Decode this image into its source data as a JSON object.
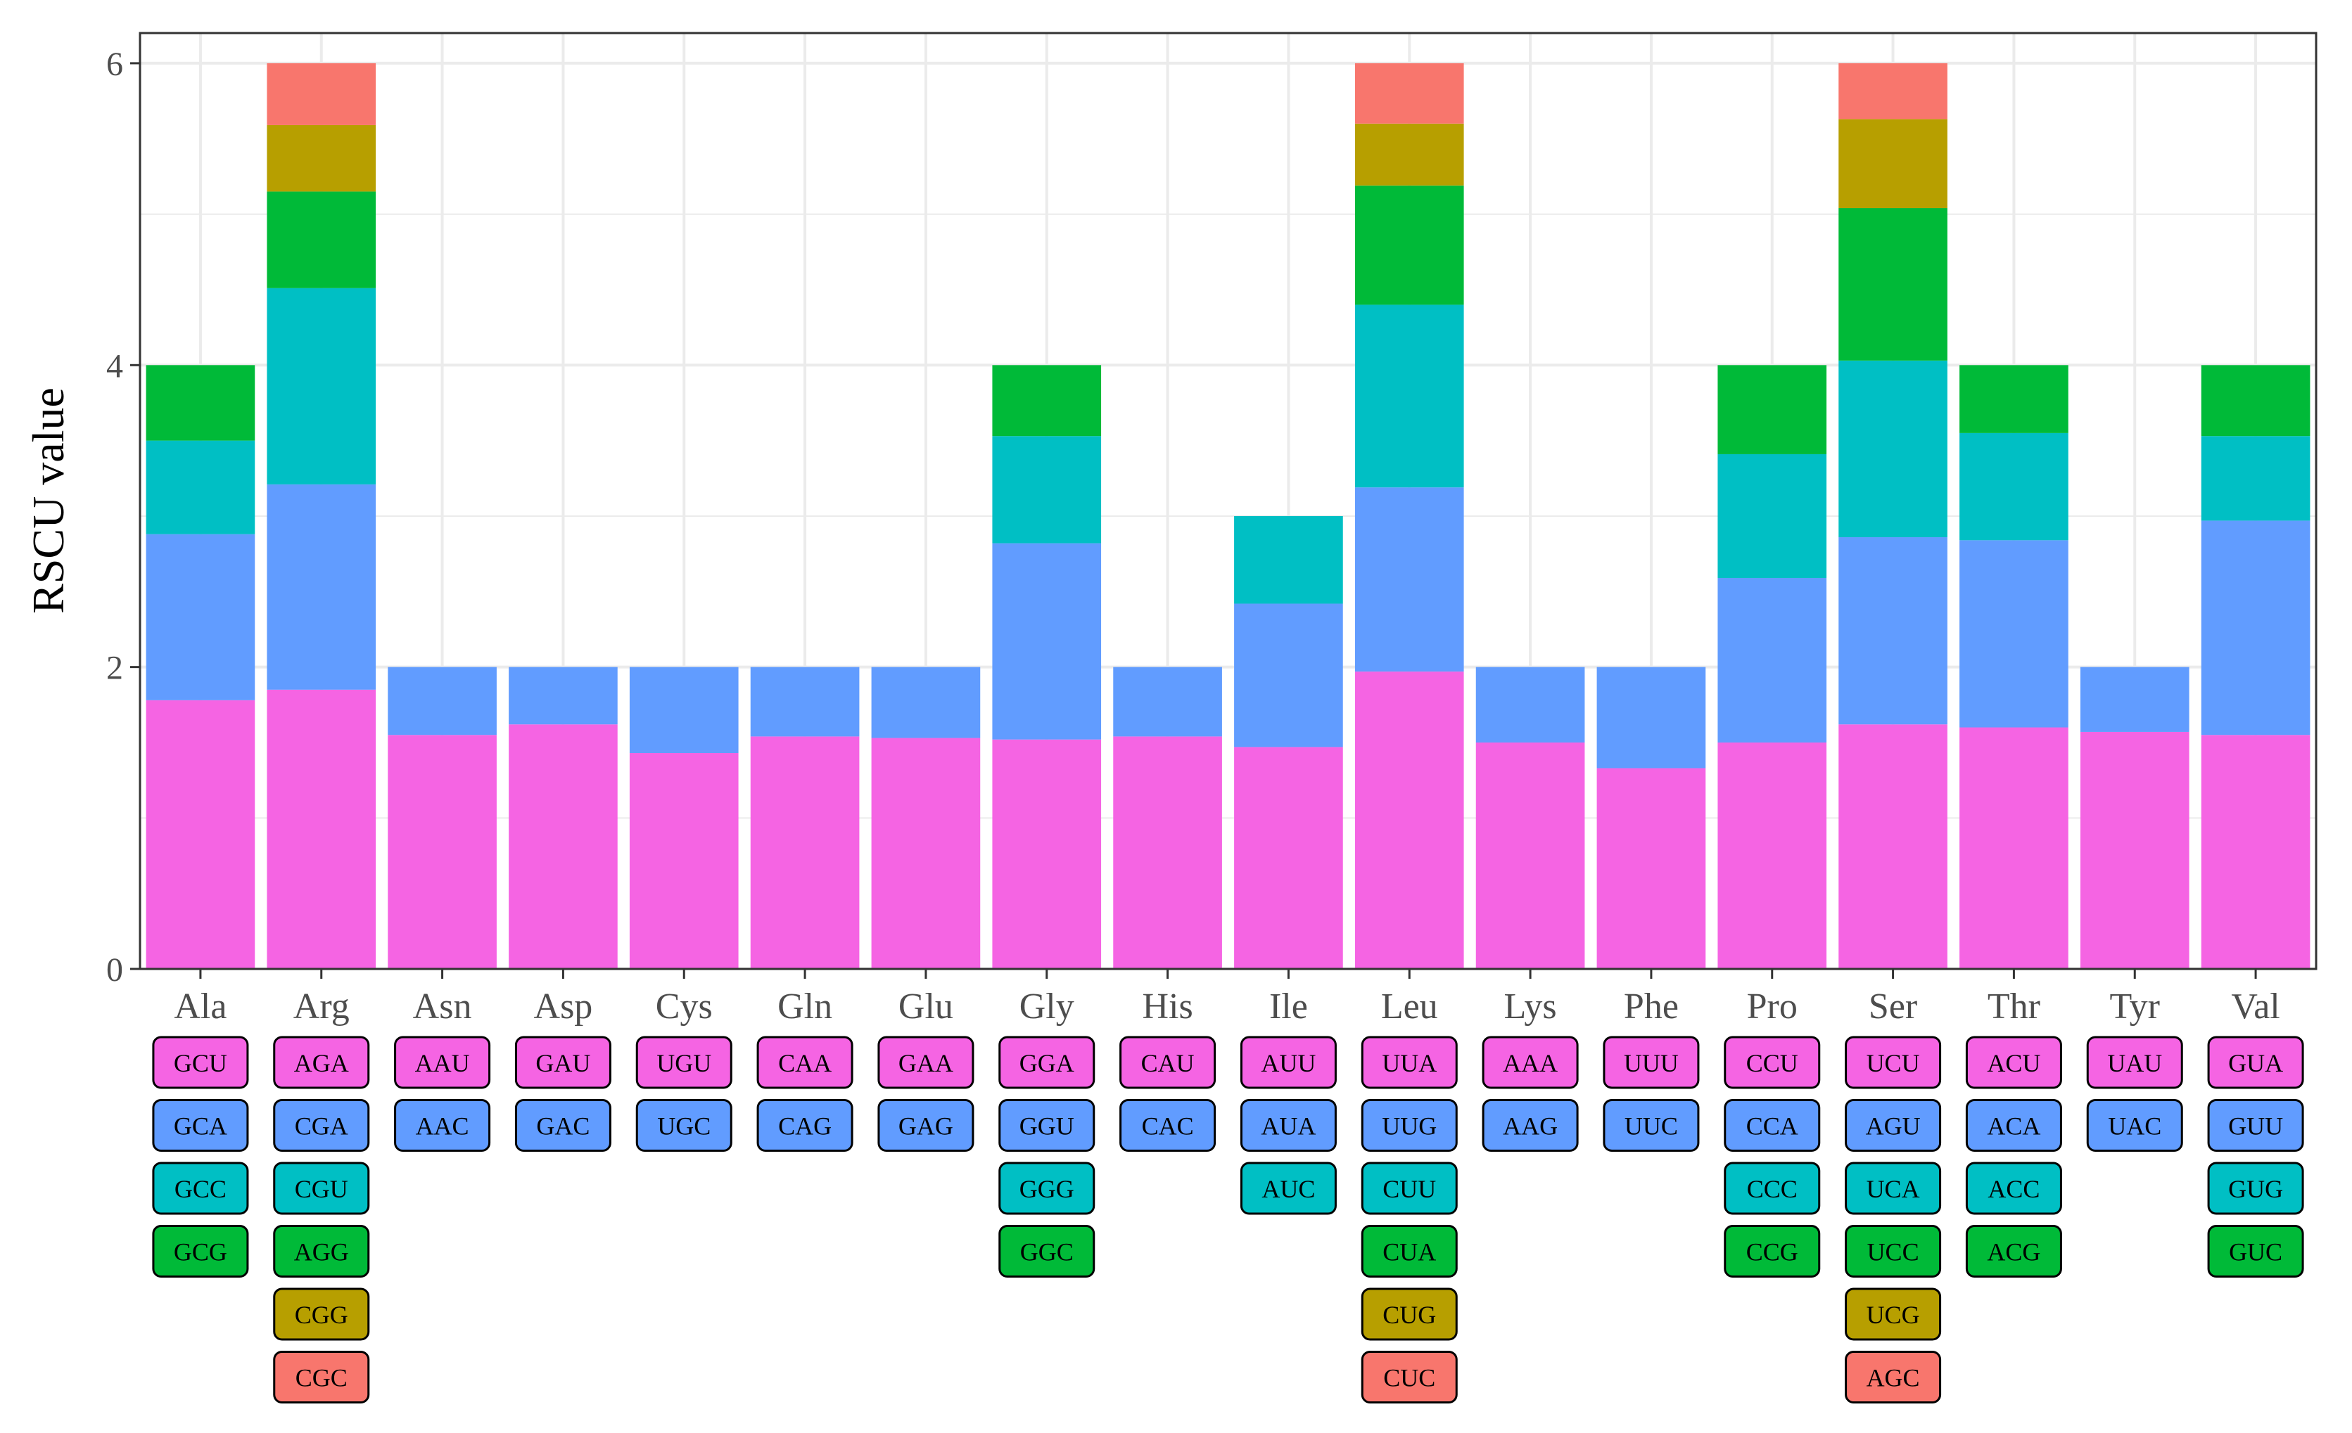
{
  "chart_data": {
    "type": "bar",
    "stacked": true,
    "title": "",
    "xlabel": "",
    "ylabel": "RSCU value",
    "ylim": [
      0,
      6.2
    ],
    "yticks": [
      0,
      2,
      4,
      6
    ],
    "grid": true,
    "legend": "codon boxes below each category",
    "colors": [
      "#F564E3",
      "#619CFF",
      "#00BFC4",
      "#00BA38",
      "#B79F00",
      "#F8766D"
    ],
    "categories": [
      "Ala",
      "Arg",
      "Asn",
      "Asp",
      "Cys",
      "Gln",
      "Glu",
      "Gly",
      "His",
      "Ile",
      "Leu",
      "Lys",
      "Phe",
      "Pro",
      "Ser",
      "Thr",
      "Tyr",
      "Val"
    ],
    "stacks": [
      {
        "aa": "Ala",
        "codons": [
          "GCU",
          "GCA",
          "GCC",
          "GCG"
        ],
        "values": [
          1.78,
          1.1,
          0.62,
          0.5
        ]
      },
      {
        "aa": "Arg",
        "codons": [
          "AGA",
          "CGA",
          "CGU",
          "AGG",
          "CGG",
          "CGC"
        ],
        "values": [
          1.85,
          1.36,
          1.3,
          0.64,
          0.44,
          0.41
        ]
      },
      {
        "aa": "Asn",
        "codons": [
          "AAU",
          "AAC"
        ],
        "values": [
          1.55,
          0.45
        ]
      },
      {
        "aa": "Asp",
        "codons": [
          "GAU",
          "GAC"
        ],
        "values": [
          1.62,
          0.38
        ]
      },
      {
        "aa": "Cys",
        "codons": [
          "UGU",
          "UGC"
        ],
        "values": [
          1.43,
          0.57
        ]
      },
      {
        "aa": "Gln",
        "codons": [
          "CAA",
          "CAG"
        ],
        "values": [
          1.54,
          0.46
        ]
      },
      {
        "aa": "Glu",
        "codons": [
          "GAA",
          "GAG"
        ],
        "values": [
          1.53,
          0.47
        ]
      },
      {
        "aa": "Gly",
        "codons": [
          "GGA",
          "GGU",
          "GGG",
          "GGC"
        ],
        "values": [
          1.52,
          1.3,
          0.71,
          0.47
        ]
      },
      {
        "aa": "His",
        "codons": [
          "CAU",
          "CAC"
        ],
        "values": [
          1.54,
          0.46
        ]
      },
      {
        "aa": "Ile",
        "codons": [
          "AUU",
          "AUA",
          "AUC"
        ],
        "values": [
          1.47,
          0.95,
          0.58
        ]
      },
      {
        "aa": "Leu",
        "codons": [
          "UUA",
          "UUG",
          "CUU",
          "CUA",
          "CUG",
          "CUC"
        ],
        "values": [
          1.97,
          1.22,
          1.21,
          0.79,
          0.41,
          0.4
        ]
      },
      {
        "aa": "Lys",
        "codons": [
          "AAA",
          "AAG"
        ],
        "values": [
          1.5,
          0.5
        ]
      },
      {
        "aa": "Phe",
        "codons": [
          "UUU",
          "UUC"
        ],
        "values": [
          1.33,
          0.67
        ]
      },
      {
        "aa": "Pro",
        "codons": [
          "CCU",
          "CCA",
          "CCC",
          "CCG"
        ],
        "values": [
          1.5,
          1.09,
          0.82,
          0.59
        ]
      },
      {
        "aa": "Ser",
        "codons": [
          "UCU",
          "AGU",
          "UCA",
          "UCC",
          "UCG",
          "AGC"
        ],
        "values": [
          1.62,
          1.24,
          1.17,
          1.01,
          0.59,
          0.37
        ]
      },
      {
        "aa": "Thr",
        "codons": [
          "ACU",
          "ACA",
          "ACC",
          "ACG"
        ],
        "values": [
          1.6,
          1.24,
          0.71,
          0.45
        ]
      },
      {
        "aa": "Tyr",
        "codons": [
          "UAU",
          "UAC"
        ],
        "values": [
          1.57,
          0.43
        ]
      },
      {
        "aa": "Val",
        "codons": [
          "GUA",
          "GUU",
          "GUG",
          "GUC"
        ],
        "values": [
          1.55,
          1.42,
          0.56,
          0.47
        ]
      }
    ]
  }
}
